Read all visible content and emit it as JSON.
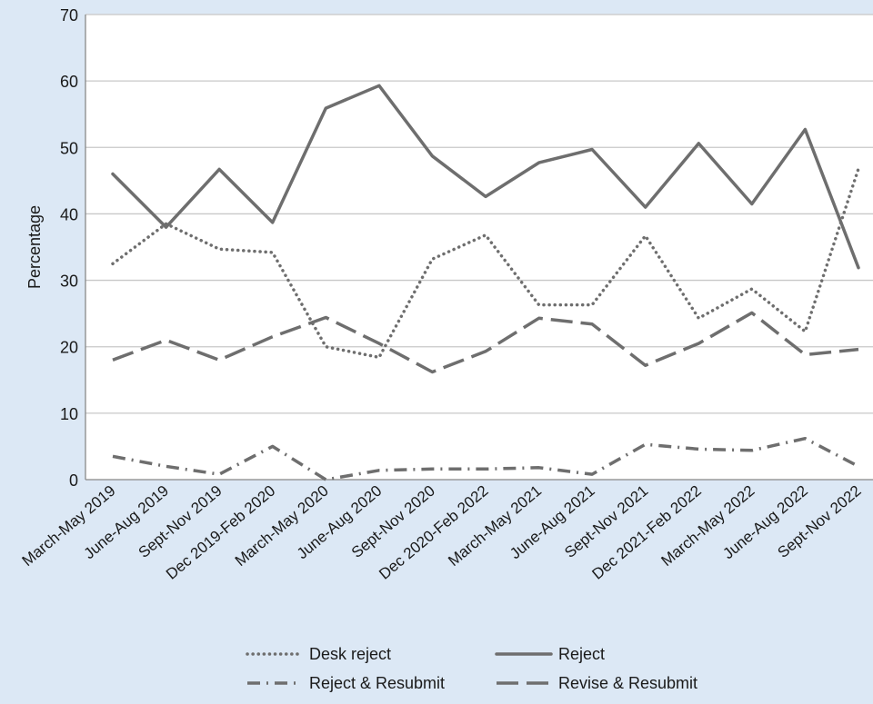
{
  "chart_data": {
    "type": "line",
    "title": "",
    "xlabel": "",
    "ylabel": "Percentage",
    "ylim": [
      0,
      70
    ],
    "yticks": [
      0,
      10,
      20,
      30,
      40,
      50,
      60,
      70
    ],
    "grid": true,
    "legend_position": "bottom",
    "categories": [
      "March-May 2019",
      "June-Aug 2019",
      "Sept-Nov 2019",
      "Dec 2019-Feb 2020",
      "March-May 2020",
      "June-Aug 2020",
      "Sept-Nov 2020",
      "Dec 2020-Feb 2022",
      "March-May 2021",
      "June-Aug 2021",
      "Sept-Nov 2021",
      "Dec 2021-Feb 2022",
      "March-May 2022",
      "June-Aug 2022",
      "Sept-Nov 2022"
    ],
    "series": [
      {
        "name": "Desk reject",
        "style": "dotted",
        "color": "#6e6e6e",
        "values": [
          32.5,
          38.5,
          34.7,
          34.2,
          20.0,
          18.4,
          33.2,
          36.8,
          26.3,
          26.3,
          36.7,
          24.3,
          28.7,
          22.3,
          46.8
        ]
      },
      {
        "name": "Reject",
        "style": "solid",
        "color": "#6e6e6e",
        "values": [
          46.0,
          38.0,
          46.7,
          38.7,
          55.9,
          59.3,
          48.7,
          42.6,
          47.7,
          49.7,
          41.0,
          50.6,
          41.5,
          52.7,
          31.9
        ]
      },
      {
        "name": "Reject & Resubmit",
        "style": "dashdot",
        "color": "#6e6e6e",
        "values": [
          3.5,
          2.0,
          0.8,
          5.0,
          0.0,
          1.4,
          1.6,
          1.6,
          1.8,
          0.8,
          5.3,
          4.6,
          4.4,
          6.2,
          2.0
        ]
      },
      {
        "name": "Revise & Resubmit",
        "style": "dashed",
        "color": "#6e6e6e",
        "values": [
          18.0,
          21.0,
          18.0,
          21.5,
          24.4,
          20.5,
          16.2,
          19.3,
          24.3,
          23.4,
          17.2,
          20.5,
          25.1,
          18.8,
          19.6
        ]
      }
    ]
  }
}
